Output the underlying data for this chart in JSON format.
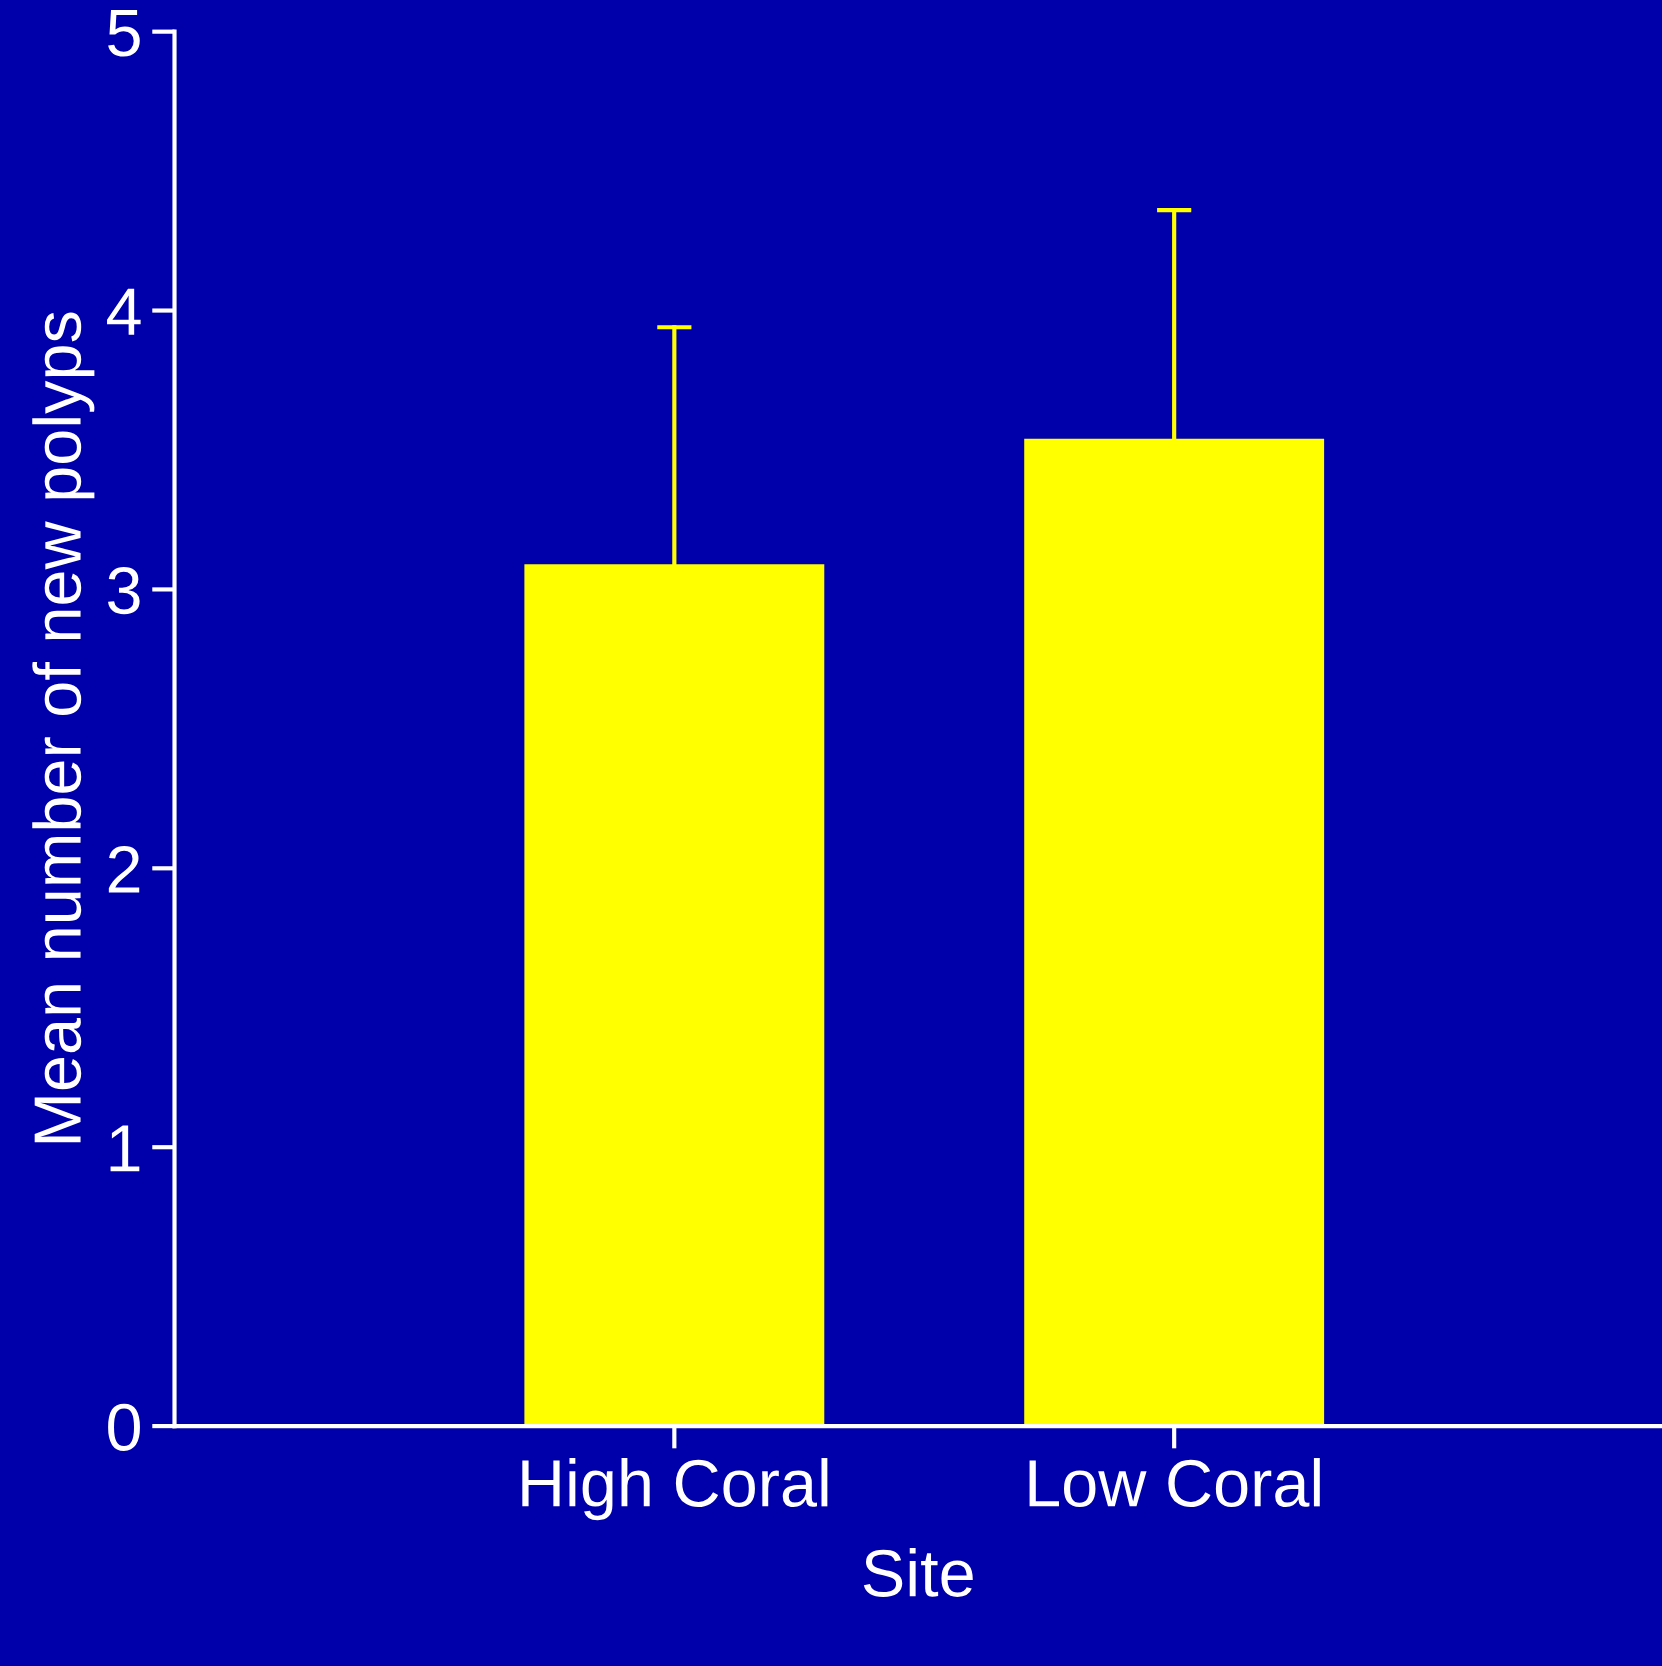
{
  "chart_data": {
    "type": "bar",
    "xlabel": "Site",
    "ylabel": "Mean number of new polyps",
    "categories": [
      "High Coral",
      "Low Coral"
    ],
    "values": [
      3.09,
      3.54
    ],
    "errors": [
      [
        3.09,
        3.94
      ],
      [
        3.54,
        4.36
      ]
    ],
    "color": "#ffff00",
    "ylim": [
      0,
      5
    ],
    "yticks": [
      0,
      1,
      2,
      3,
      4,
      5
    ],
    "grid": false,
    "legend": false
  }
}
